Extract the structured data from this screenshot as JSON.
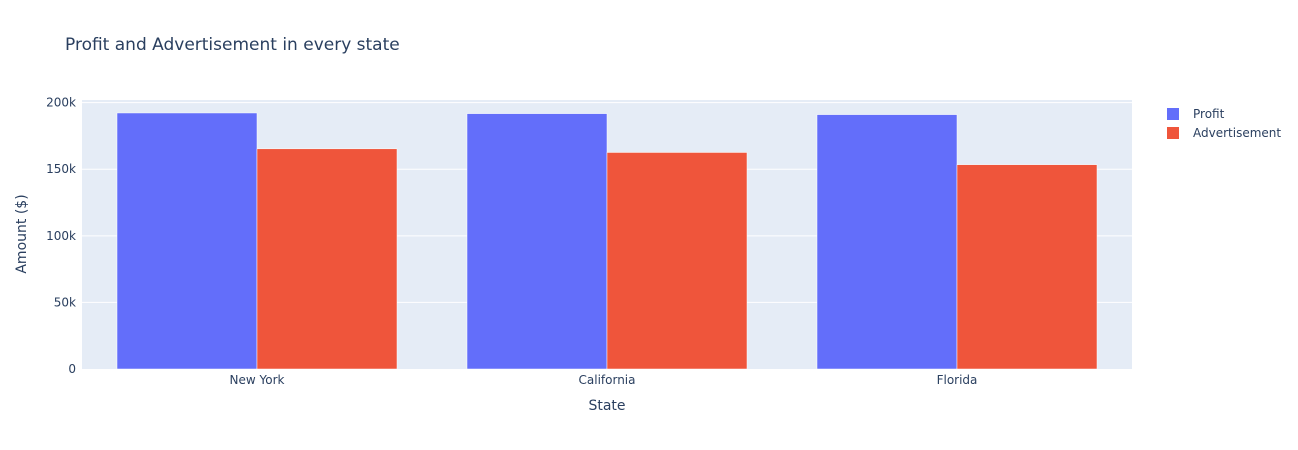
{
  "chart_data": {
    "type": "bar",
    "title": "Profit and Advertisement in every state",
    "xlabel": "State",
    "ylabel": "Amount ($)",
    "categories": [
      "New York",
      "California",
      "Florida"
    ],
    "series": [
      {
        "name": "Profit",
        "color": "#636efa",
        "values": [
          192262,
          191792,
          191050
        ]
      },
      {
        "name": "Advertisement",
        "color": "#ef553b",
        "values": [
          165349,
          162598,
          153442
        ]
      }
    ],
    "ylim": [
      0,
      202000
    ],
    "yticks": [
      {
        "value": 0,
        "label": "0"
      },
      {
        "value": 50000,
        "label": "50k"
      },
      {
        "value": 100000,
        "label": "100k"
      },
      {
        "value": 150000,
        "label": "150k"
      },
      {
        "value": 200000,
        "label": "200k"
      }
    ],
    "grid": true,
    "legend_position": "top-right",
    "plot_background": "#e5ecf6"
  }
}
